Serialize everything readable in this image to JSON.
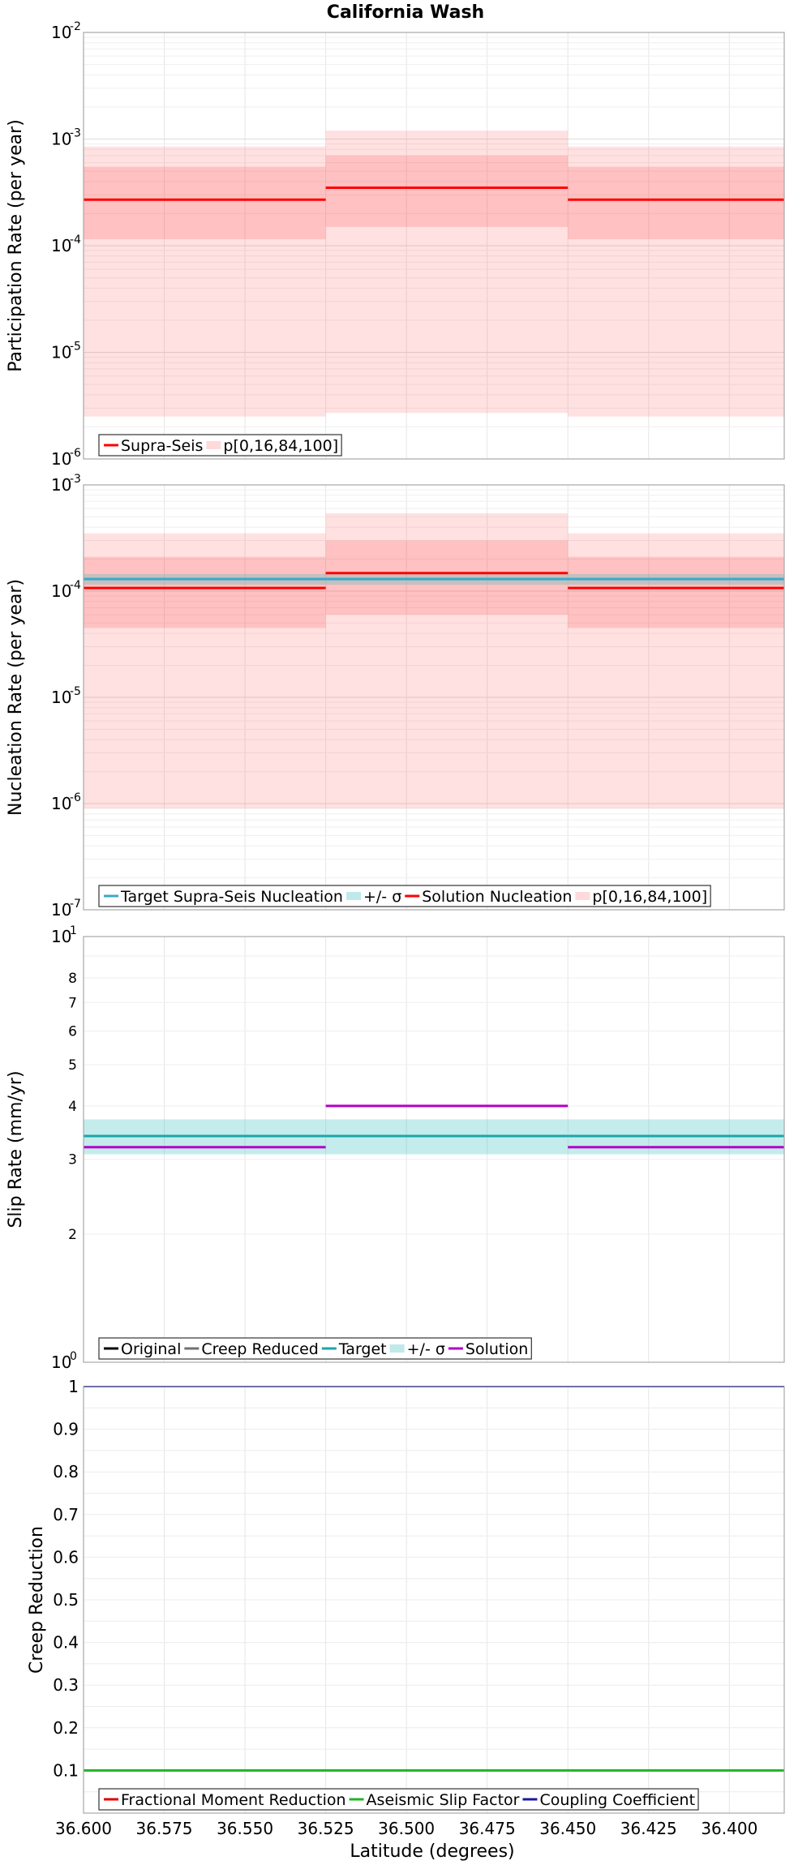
{
  "title": "California Wash",
  "xlabel": "Latitude (degrees)",
  "x_axis": {
    "range": [
      36.6,
      36.383
    ],
    "reversed": true,
    "ticks": [
      36.6,
      36.575,
      36.55,
      36.525,
      36.5,
      36.475,
      36.45,
      36.425,
      36.4
    ],
    "tick_labels": [
      "36.600",
      "36.575",
      "36.550",
      "36.525",
      "36.500",
      "36.475",
      "36.450",
      "36.425",
      "36.400"
    ]
  },
  "chart_data": [
    {
      "type": "line",
      "ylabel": "Participation Rate (per year)",
      "scale": "log",
      "ylim": [
        1e-06,
        0.01
      ],
      "y_ticks": [
        {
          "base": "10",
          "exp": "-6",
          "value": 1e-06
        },
        {
          "base": "10",
          "exp": "-5",
          "value": 1e-05
        },
        {
          "base": "10",
          "exp": "-4",
          "value": 0.0001
        },
        {
          "base": "10",
          "exp": "-3",
          "value": 0.001
        },
        {
          "base": "10",
          "exp": "-2",
          "value": 0.01
        }
      ],
      "segments": [
        {
          "x0": 36.6,
          "x1": 36.525
        },
        {
          "x0": 36.525,
          "x1": 36.45
        },
        {
          "x0": 36.45,
          "x1": 36.383
        }
      ],
      "series": [
        {
          "name": "Supra-Seis",
          "color": "#ff0000",
          "values": [
            0.00027,
            0.00035,
            0.00027
          ]
        }
      ],
      "bands": [
        {
          "name": "p[0,16,84,100]",
          "color": "#ffd0d0",
          "p0": [
            2.5e-06,
            2.7e-06,
            2.5e-06
          ],
          "p100": [
            0.00085,
            0.0012,
            0.00085
          ],
          "p16": [
            0.000115,
            0.00015,
            0.000115
          ],
          "p84": [
            0.00055,
            0.0007,
            0.00055
          ]
        }
      ],
      "legend": [
        {
          "label": "Supra-Seis",
          "color": "#ff0000",
          "kind": "line"
        },
        {
          "label": "p[0,16,84,100]",
          "color": "#ffdada",
          "kind": "band"
        }
      ],
      "legend_position": "bottom-left"
    },
    {
      "type": "line",
      "ylabel": "Nucleation Rate (per year)",
      "scale": "log",
      "ylim": [
        1e-07,
        0.001
      ],
      "y_ticks": [
        {
          "base": "10",
          "exp": "-7",
          "value": 1e-07
        },
        {
          "base": "10",
          "exp": "-6",
          "value": 1e-06
        },
        {
          "base": "10",
          "exp": "-5",
          "value": 1e-05
        },
        {
          "base": "10",
          "exp": "-4",
          "value": 0.0001
        },
        {
          "base": "10",
          "exp": "-3",
          "value": 0.001
        }
      ],
      "segments": [
        {
          "x0": 36.6,
          "x1": 36.525
        },
        {
          "x0": 36.525,
          "x1": 36.45
        },
        {
          "x0": 36.45,
          "x1": 36.383
        }
      ],
      "series": [
        {
          "name": "Target Supra-Seis Nucleation",
          "color": "#3aa9c9",
          "values": [
            0.00013,
            0.00013,
            0.00013
          ]
        },
        {
          "name": "Solution Nucleation",
          "color": "#ff0000",
          "values": [
            0.000107,
            0.000148,
            0.000107
          ]
        }
      ],
      "target_sigma": {
        "name": "+/- σ",
        "low": [
          0.000115,
          0.000115,
          0.000115
        ],
        "high": [
          0.000145,
          0.000145,
          0.000145
        ]
      },
      "bands": [
        {
          "name": "p[0,16,84,100]",
          "color": "#ffd0d0",
          "p0": [
            9e-07,
            9e-07,
            9e-07
          ],
          "p100": [
            0.00035,
            0.00054,
            0.00035
          ],
          "p16": [
            4.5e-05,
            6e-05,
            4.5e-05
          ],
          "p84": [
            0.00021,
            0.0003,
            0.00021
          ]
        }
      ],
      "legend": [
        {
          "label": "Target Supra-Seis Nucleation",
          "color": "#3aa9c9",
          "kind": "line"
        },
        {
          "label": "+/- σ",
          "color": "#bfe9ea",
          "kind": "band"
        },
        {
          "label": "Solution Nucleation",
          "color": "#ff0000",
          "kind": "line"
        },
        {
          "label": "p[0,16,84,100]",
          "color": "#ffdada",
          "kind": "band"
        }
      ],
      "legend_position": "bottom-left"
    },
    {
      "type": "line",
      "ylabel": "Slip Rate (mm/yr)",
      "scale": "log",
      "ylim": [
        1,
        10
      ],
      "y_ticks": [
        {
          "base": "10",
          "exp": "1",
          "value": 10
        },
        {
          "base": "10",
          "exp": "0",
          "value": 1
        }
      ],
      "y_minor_labels": [
        {
          "label": "2",
          "value": 2
        },
        {
          "label": "3",
          "value": 3
        },
        {
          "label": "4",
          "value": 4
        },
        {
          "label": "5",
          "value": 5
        },
        {
          "label": "6",
          "value": 6
        },
        {
          "label": "7",
          "value": 7
        },
        {
          "label": "8",
          "value": 8
        }
      ],
      "segments": [
        {
          "x0": 36.6,
          "x1": 36.525
        },
        {
          "x0": 36.525,
          "x1": 36.45
        },
        {
          "x0": 36.45,
          "x1": 36.383
        }
      ],
      "series": [
        {
          "name": "Target",
          "color": "#1aa6a6",
          "values": [
            3.4,
            3.4,
            3.4
          ]
        },
        {
          "name": "Solution",
          "color": "#b400c8",
          "values": [
            3.2,
            4.0,
            3.2
          ]
        }
      ],
      "target_sigma": {
        "name": "+/- σ",
        "low": [
          3.08,
          3.08,
          3.08
        ],
        "high": [
          3.72,
          3.72,
          3.72
        ]
      },
      "legend": [
        {
          "label": "Original",
          "color": "#000000",
          "kind": "line"
        },
        {
          "label": "Creep Reduced",
          "color": "#707070",
          "kind": "line"
        },
        {
          "label": "Target",
          "color": "#1aa6a6",
          "kind": "line"
        },
        {
          "label": "+/- σ",
          "color": "#bfe9ea",
          "kind": "band"
        },
        {
          "label": "Solution",
          "color": "#b400c8",
          "kind": "line"
        }
      ],
      "legend_position": "bottom-left"
    },
    {
      "type": "line",
      "ylabel": "Creep Reduction",
      "scale": "linear",
      "ylim": [
        0,
        1
      ],
      "y_ticks": [
        {
          "label": "0.1",
          "value": 0.1
        },
        {
          "label": "0.2",
          "value": 0.2
        },
        {
          "label": "0.3",
          "value": 0.3
        },
        {
          "label": "0.4",
          "value": 0.4
        },
        {
          "label": "0.5",
          "value": 0.5
        },
        {
          "label": "0.6",
          "value": 0.6
        },
        {
          "label": "0.7",
          "value": 0.7
        },
        {
          "label": "0.8",
          "value": 0.8
        },
        {
          "label": "0.9",
          "value": 0.9
        },
        {
          "label": "1",
          "value": 1
        }
      ],
      "series": [
        {
          "name": "Aseismic Slip Factor",
          "color": "#22b422",
          "value": 0.1
        },
        {
          "name": "Coupling Coefficient",
          "color": "#1a1aa0",
          "value": 1.0
        }
      ],
      "legend": [
        {
          "label": "Fractional Moment Reduction",
          "color": "#e00000",
          "kind": "line"
        },
        {
          "label": "Aseismic Slip Factor",
          "color": "#22b422",
          "kind": "line"
        },
        {
          "label": "Coupling Coefficient",
          "color": "#1a1aa0",
          "kind": "line"
        }
      ],
      "legend_position": "bottom-left"
    }
  ]
}
